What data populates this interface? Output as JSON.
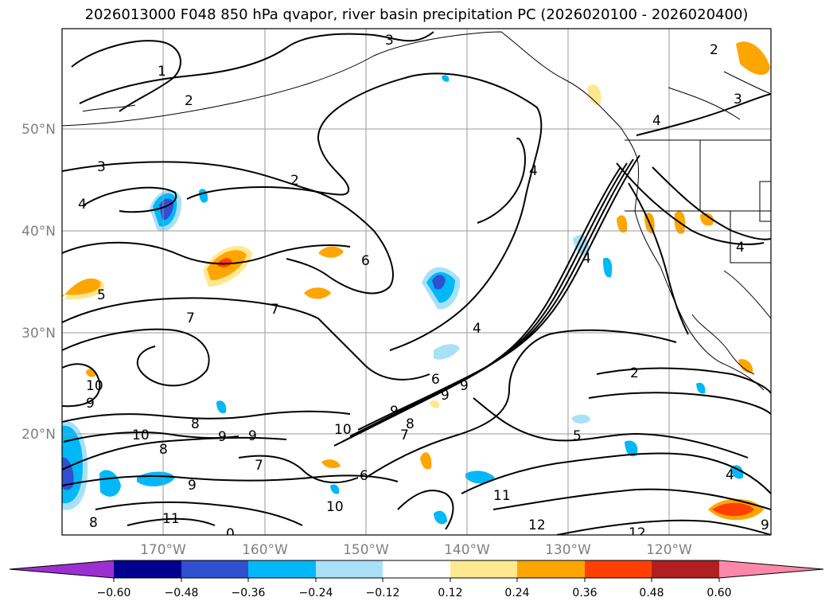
{
  "figure": {
    "title": "2026013000 F048 850 hPa qvapor, river basin precipitation PC (2026020100 - 2026020400)"
  },
  "map": {
    "lat_labels": [
      "50°N",
      "40°N",
      "30°N",
      "20°N"
    ],
    "lon_labels": [
      "170°W",
      "160°W",
      "150°W",
      "140°W",
      "130°W",
      "120°W"
    ],
    "contour_labels": [
      "1",
      "2",
      "3",
      "3",
      "2",
      "4",
      "3",
      "4",
      "2",
      "4",
      "4",
      "4",
      "6",
      "5",
      "7",
      "7",
      "4",
      "10",
      "9",
      "6",
      "9",
      "8",
      "9",
      "9",
      "10",
      "7",
      "8",
      "10",
      "8",
      "9",
      "9",
      "7",
      "6",
      "5",
      "4",
      "11",
      "10",
      "9",
      "11",
      "12",
      "12",
      "9",
      "8",
      "0",
      "2"
    ],
    "colors": {
      "land_lines": "#000000",
      "grid": "#9a9a9a",
      "tick_label": "#808080"
    }
  },
  "colorbar": {
    "tick_labels": [
      "−0.60",
      "−0.48",
      "−0.36",
      "−0.24",
      "−0.12",
      "0.12",
      "0.24",
      "0.36",
      "0.48",
      "0.60"
    ],
    "colors": [
      "#9b30d0",
      "#000090",
      "#3050d0",
      "#00b8f8",
      "#a8e0f8",
      "#ffffff",
      "#ffe890",
      "#ffa500",
      "#ff4000",
      "#b02020",
      "#ff88aa"
    ]
  }
}
